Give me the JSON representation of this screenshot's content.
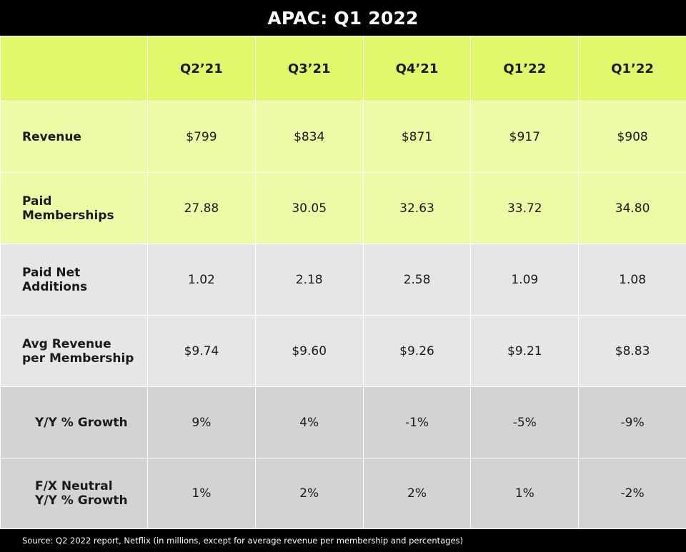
{
  "title": "APAC: Q1 2022",
  "footer": "Source: Q2 2022 report, Netflix (in millions, except for average revenue per membership and percentages)",
  "colors": {
    "header_bg": "#e3f76b",
    "green_row_bg": "#eefaa6",
    "light_row_bg": "#e6e6e8",
    "dark_row_bg": "#d3d3d5",
    "page_bg": "#000000"
  },
  "chart_data": {
    "type": "table",
    "title": "APAC: Q1 2022",
    "columns": [
      "Q2’21",
      "Q3’21",
      "Q4’21",
      "Q1’22",
      "Q1’22"
    ],
    "rows": [
      {
        "label": "Revenue",
        "values": [
          "$799",
          "$834",
          "$871",
          "$917",
          "$908"
        ]
      },
      {
        "label": "Paid\nMemberships",
        "values": [
          "27.88",
          "30.05",
          "32.63",
          "33.72",
          "34.80"
        ]
      },
      {
        "label": "Paid Net\nAdditions",
        "values": [
          "1.02",
          "2.18",
          "2.58",
          "1.09",
          "1.08"
        ]
      },
      {
        "label": "Avg Revenue\nper Membership",
        "values": [
          "$9.74",
          "$9.60",
          "$9.26",
          "$9.21",
          "$8.83"
        ]
      },
      {
        "label": "Y/Y % Growth",
        "values": [
          "9%",
          "4%",
          "-1%",
          "-5%",
          "-9%"
        ]
      },
      {
        "label": "F/X Neutral\nY/Y % Growth",
        "values": [
          "1%",
          "2%",
          "2%",
          "1%",
          "-2%"
        ]
      }
    ]
  }
}
